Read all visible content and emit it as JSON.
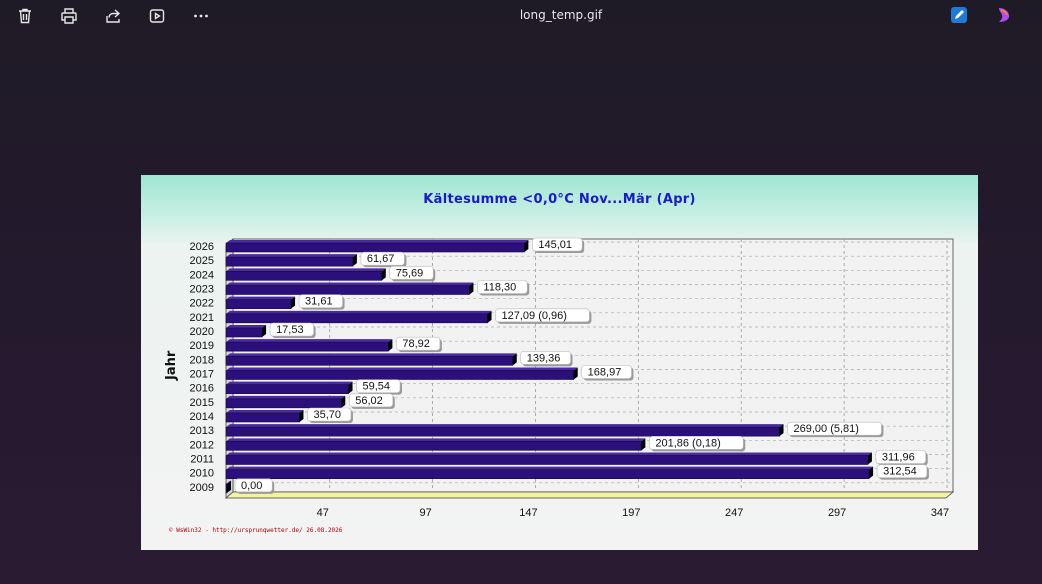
{
  "window": {
    "title": "long_temp.gif",
    "toolbar": [
      {
        "name": "delete",
        "icon": "trash-icon"
      },
      {
        "name": "print",
        "icon": "printer-icon"
      },
      {
        "name": "share",
        "icon": "share-icon"
      },
      {
        "name": "slideshow",
        "icon": "play-icon"
      },
      {
        "name": "more",
        "icon": "more-icon"
      }
    ],
    "right_icons": [
      "edit-app-icon",
      "copilot-icon"
    ]
  },
  "chart_data": {
    "type": "bar",
    "orientation": "horizontal",
    "title": "Kältesumme  <0,0°C  Nov...Mär (Apr)",
    "ylabel": "Jahr",
    "xlabel": "",
    "xlim": [
      0,
      347
    ],
    "xticks": [
      "47",
      "97",
      "147",
      "197",
      "247",
      "297",
      "347"
    ],
    "xtick_values": [
      47,
      97,
      147,
      197,
      247,
      297,
      347
    ],
    "categories": [
      "2026",
      "2025",
      "2024",
      "2023",
      "2022",
      "2021",
      "2020",
      "2019",
      "2018",
      "2017",
      "2016",
      "2015",
      "2014",
      "2013",
      "2012",
      "2011",
      "2010",
      "2009"
    ],
    "values": [
      145.01,
      61.67,
      75.69,
      118.3,
      31.61,
      127.09,
      17.53,
      78.92,
      139.36,
      168.97,
      59.54,
      56.02,
      35.7,
      269.0,
      201.86,
      311.96,
      312.54,
      0.0
    ],
    "labels": [
      "145,01",
      "61,67",
      "75,69",
      "118,30",
      "31,61",
      "127,09 (0,96)",
      "17,53",
      "78,92",
      "139,36",
      "168,97",
      "59,54",
      "56,02",
      "35,70",
      "269,00 (5,81)",
      "201,86 (0,18)",
      "311,96",
      "312,54",
      "0,00"
    ],
    "grid": true,
    "colors": {
      "bar": "#2b0f7a",
      "bar_top": "#4a2aa0",
      "bar_side": "#000000",
      "floor": "#f3f3a0",
      "title": "#1a1acc"
    },
    "footer": "© WsWin32 - http://ursprunqwetter.de/  26.08.2026"
  }
}
